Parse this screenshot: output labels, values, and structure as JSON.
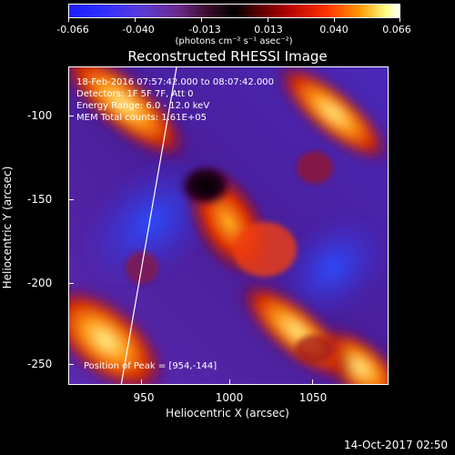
{
  "colorbar": {
    "ticks": [
      "-0.066",
      "-0.040",
      "-0.013",
      "0.013",
      "0.040",
      "0.066"
    ],
    "units": "(photons cm⁻² s⁻¹ asec⁻²)"
  },
  "title": "Reconstructed RHESSI Image",
  "annotations": {
    "time_range": "18-Feb-2016 07:57:42.000 to 08:07:42.000",
    "detectors": "Detectors: 1F 5F 7F, Att 0",
    "energy": "Energy Range: 6.0 - 12.0 keV",
    "counts": "MEM     Total counts: 1.61E+05",
    "peak": "Position of Peak = [954,-144]"
  },
  "axes": {
    "x_ticks": [
      "950",
      "1000",
      "1050"
    ],
    "y_ticks": [
      "-100",
      "-150",
      "-200",
      "-250"
    ],
    "xlabel": "Heliocentric X (arcsec)",
    "ylabel": "Heliocentric Y (arcsec)"
  },
  "timestamp": "14-Oct-2017 02:50"
}
